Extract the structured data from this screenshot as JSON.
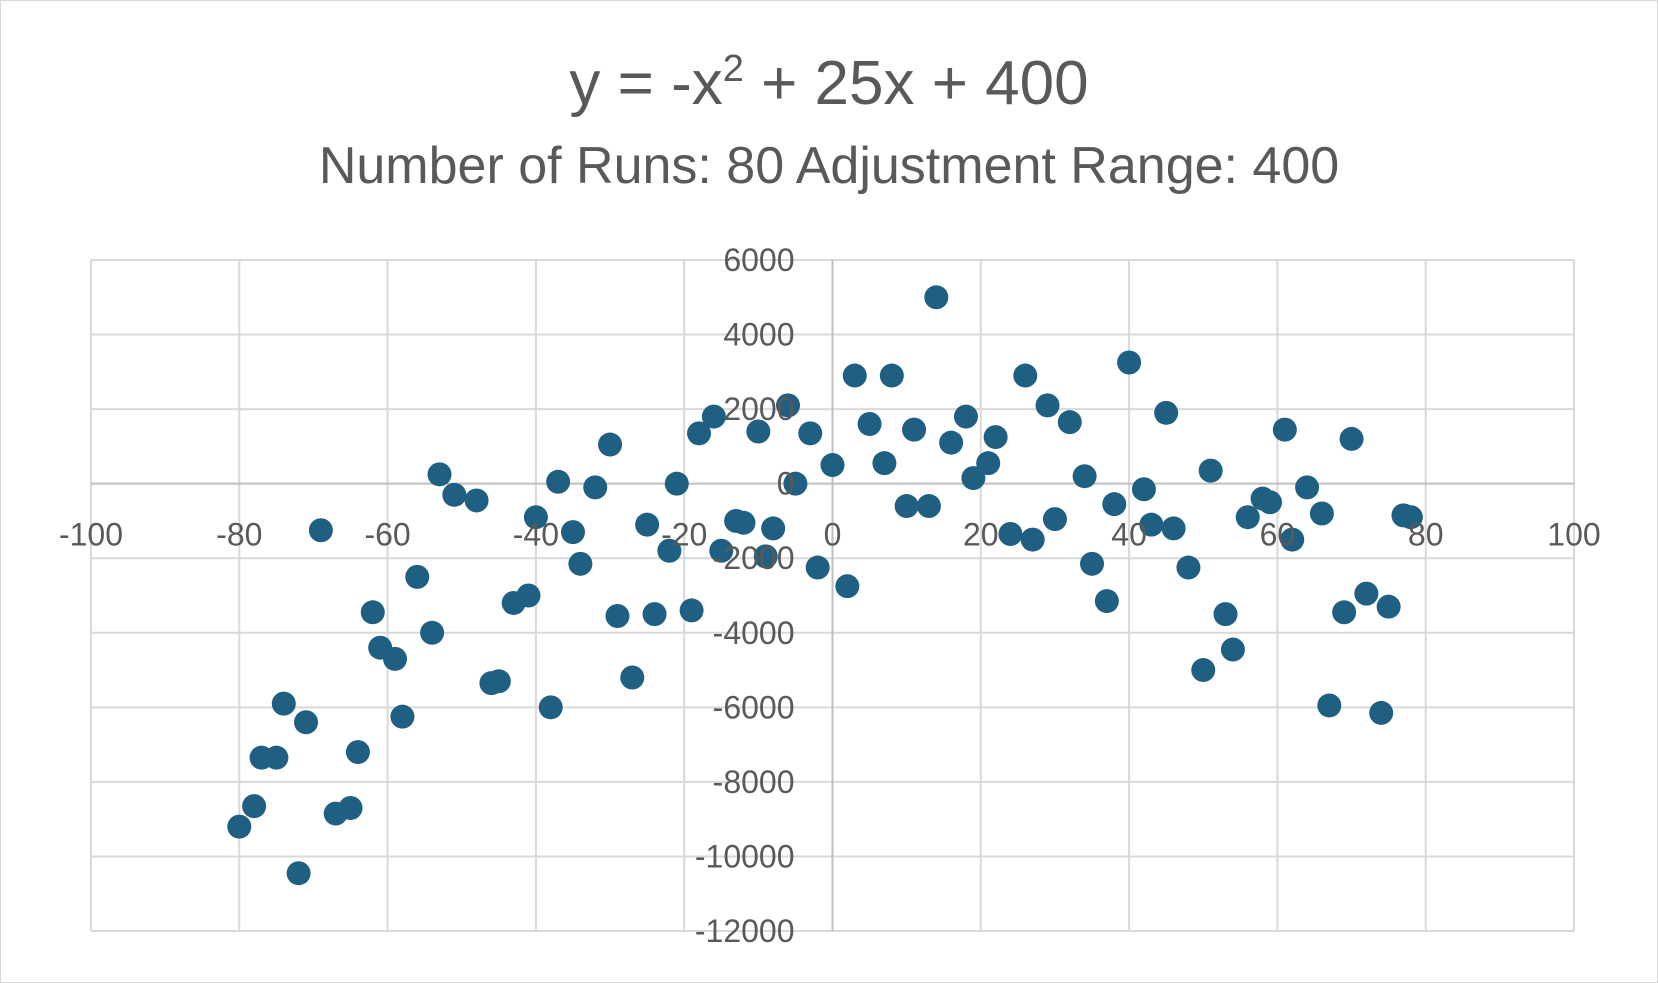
{
  "chart_data": {
    "type": "scatter",
    "title": "y = -x² + 25x + 400",
    "title_parts": {
      "lead": "y = -x",
      "exponent": "2",
      "tail": " + 25x + 400"
    },
    "subtitle": "Number of Runs: 80 Adjustment Range: 400",
    "xlabel": "",
    "ylabel": "",
    "xlim": [
      -100,
      100
    ],
    "ylim": [
      -12000,
      6000
    ],
    "x_ticks": [
      -100,
      -80,
      -60,
      -40,
      -20,
      0,
      20,
      40,
      60,
      80,
      100
    ],
    "y_ticks": [
      -12000,
      -10000,
      -8000,
      -6000,
      -4000,
      -2000,
      0,
      2000,
      4000,
      6000
    ],
    "grid": true,
    "legend": "none",
    "colors": {
      "marker": "#1f5f82",
      "grid": "#d9d9d9",
      "axis": "#bfbfbf",
      "text": "#595959"
    },
    "series": [
      {
        "x": [
          -80,
          -78,
          -77,
          -75,
          -74,
          -72,
          -71,
          -69,
          -67,
          -65,
          -64,
          -62,
          -61,
          -59,
          -58,
          -56,
          -54,
          -53,
          -51,
          -48,
          -46,
          -45,
          -43,
          -41,
          -40,
          -38,
          -37,
          -35,
          -34,
          -32,
          -30,
          -29,
          -27,
          -25,
          -24,
          -22,
          -21,
          -19,
          -18,
          -16,
          -15,
          -13,
          -12,
          -10,
          -9,
          -8,
          -6,
          -5,
          -3,
          -2,
          0,
          2,
          3,
          5,
          7,
          8,
          10,
          11,
          13,
          14,
          16,
          18,
          19,
          21,
          22,
          24,
          26,
          27,
          29,
          30,
          32,
          34,
          35,
          37,
          38,
          40,
          42,
          43,
          45,
          46,
          48,
          50,
          51,
          53,
          54,
          56,
          58,
          59,
          61,
          62,
          64,
          66,
          67,
          69,
          70,
          72,
          74,
          75,
          77,
          78
        ],
        "y": [
          -9200,
          -8650,
          -7350,
          -7350,
          -5900,
          -10450,
          -6400,
          -1250,
          -8850,
          -8700,
          -7200,
          -3450,
          -4400,
          -4700,
          -6250,
          -2500,
          -4000,
          250,
          -300,
          -450,
          -5350,
          -5300,
          -3200,
          -3000,
          -900,
          -6000,
          50,
          -1300,
          -2150,
          -100,
          1050,
          -3550,
          -5200,
          -1100,
          -3500,
          -1800,
          0,
          -3400,
          1350,
          1800,
          -1800,
          -1000,
          -1050,
          1400,
          -1950,
          -1200,
          2100,
          0,
          1350,
          -2250,
          500,
          -2750,
          2900,
          1600,
          550,
          2900,
          -600,
          1450,
          -600,
          5000,
          1100,
          1800,
          150,
          550,
          1250,
          -1350,
          2900,
          -1500,
          2100,
          -950,
          1650,
          200,
          -2150,
          -3150,
          -550,
          3250,
          -150,
          -1100,
          1900,
          -1200,
          -2250,
          -5000,
          350,
          -3500,
          -4450,
          -900,
          -400,
          -500,
          1450,
          -1500,
          -100,
          -800,
          -5950,
          -3450,
          1200,
          -2950,
          -6150,
          -3300,
          -850,
          -900
        ]
      }
    ]
  }
}
